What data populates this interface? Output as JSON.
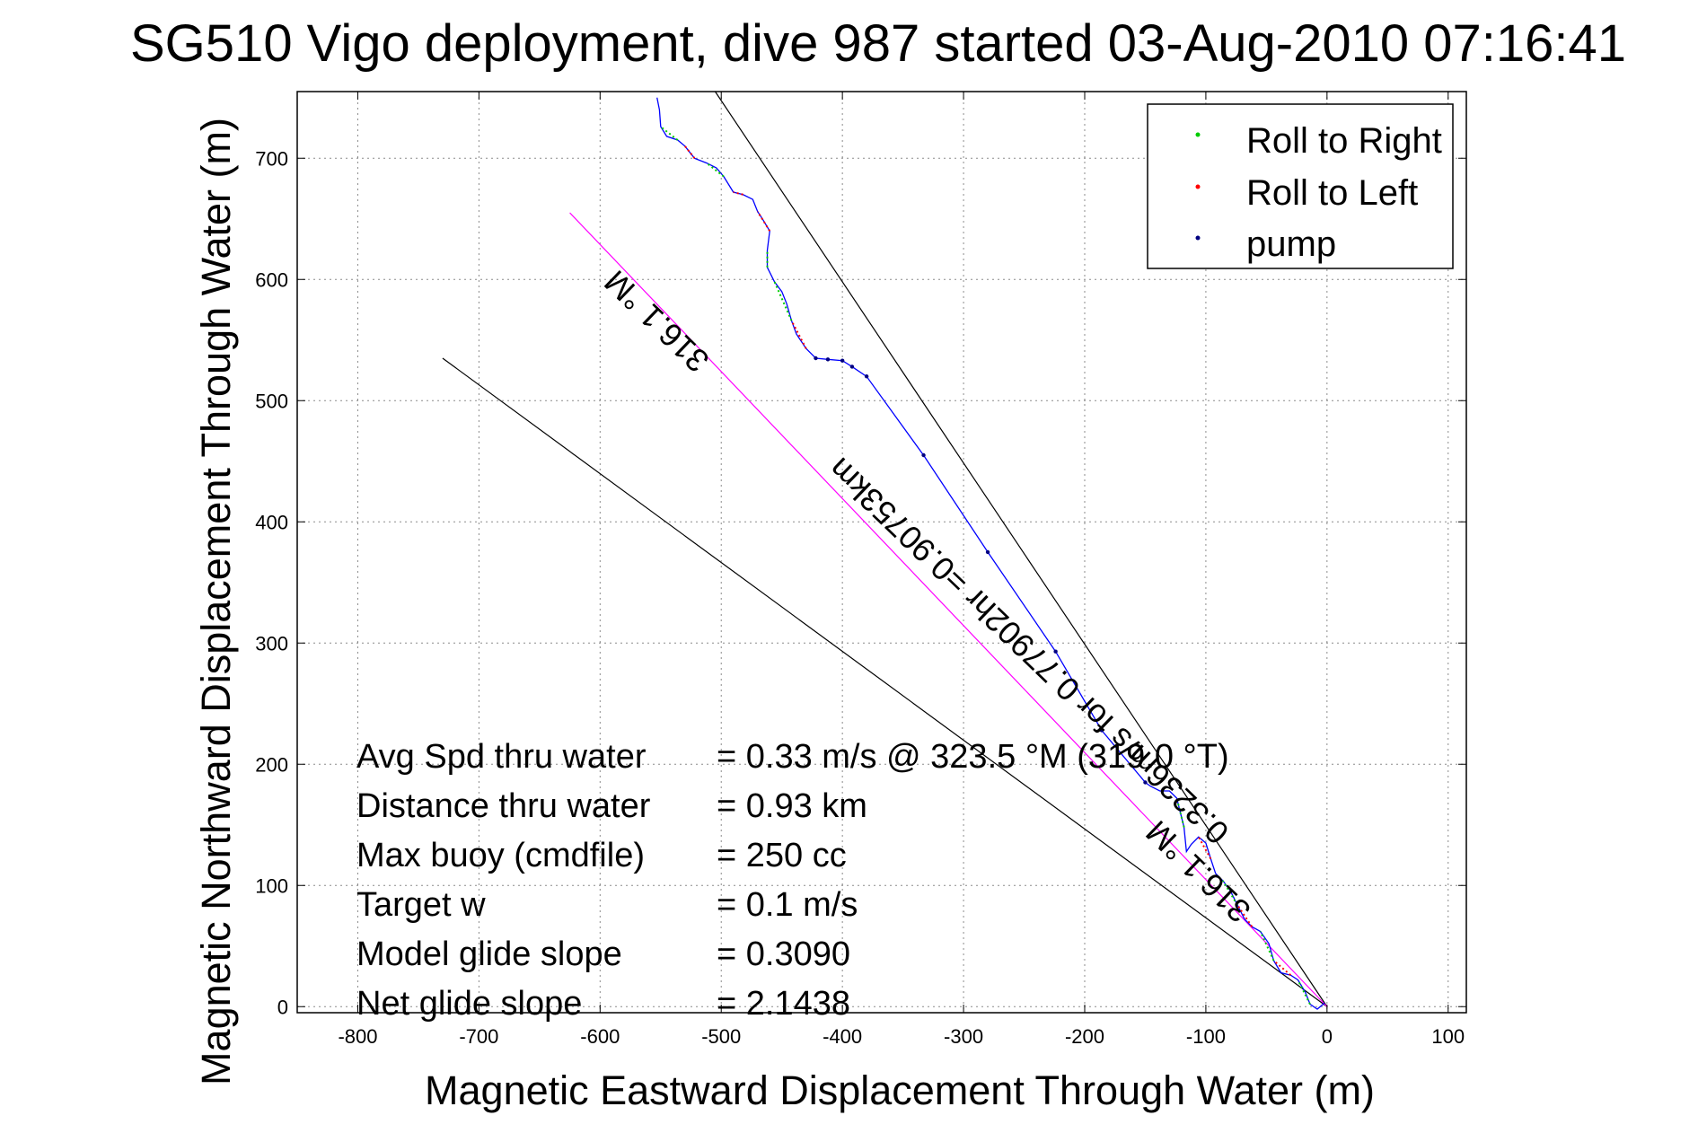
{
  "chart_data": {
    "type": "line",
    "title": "SG510 Vigo deployment, dive 987 started 03-Aug-2010 07:16:41",
    "xlabel": "Magnetic Eastward Displacement Through Water (m)",
    "ylabel": "Magnetic Northward Displacement Through Water (m)",
    "xlim": [
      -850,
      115
    ],
    "ylim": [
      -5,
      755
    ],
    "xticks": [
      -800,
      -700,
      -600,
      -500,
      -400,
      -300,
      -200,
      -100,
      0,
      100
    ],
    "yticks": [
      0,
      100,
      200,
      300,
      400,
      500,
      600,
      700
    ],
    "grid": true,
    "legend_position": "top-right",
    "legend": [
      {
        "label": "Roll to Right",
        "color": "#00cc00"
      },
      {
        "label": "Roll to Left",
        "color": "#ff0000"
      },
      {
        "label": "pump",
        "color": "#000080"
      }
    ],
    "track": {
      "color": "#0000ff",
      "points": [
        [
          -2,
          3
        ],
        [
          -8,
          -2
        ],
        [
          -14,
          2
        ],
        [
          -18,
          12
        ],
        [
          -24,
          22
        ],
        [
          -30,
          26
        ],
        [
          -38,
          28
        ],
        [
          -44,
          38
        ],
        [
          -48,
          52
        ],
        [
          -55,
          62
        ],
        [
          -62,
          66
        ],
        [
          -68,
          72
        ],
        [
          -74,
          84
        ],
        [
          -80,
          96
        ],
        [
          -86,
          104
        ],
        [
          -92,
          110
        ],
        [
          -96,
          122
        ],
        [
          -100,
          135
        ],
        [
          -106,
          140
        ],
        [
          -112,
          134
        ],
        [
          -116,
          128
        ],
        [
          -118,
          148
        ],
        [
          -124,
          172
        ],
        [
          -130,
          178
        ],
        [
          -138,
          178
        ],
        [
          -146,
          182
        ],
        [
          -150,
          185
        ],
        [
          -186,
          228
        ],
        [
          -224,
          293
        ],
        [
          -280,
          375
        ],
        [
          -333,
          455
        ],
        [
          -380,
          520
        ],
        [
          -392,
          528
        ],
        [
          -400,
          533
        ],
        [
          -412,
          534
        ],
        [
          -422,
          535
        ],
        [
          -430,
          543
        ],
        [
          -438,
          555
        ],
        [
          -442,
          566
        ],
        [
          -446,
          580
        ],
        [
          -450,
          590
        ],
        [
          -456,
          598
        ],
        [
          -462,
          610
        ],
        [
          -462,
          624
        ],
        [
          -460,
          640
        ],
        [
          -466,
          650
        ],
        [
          -470,
          656
        ],
        [
          -474,
          666
        ],
        [
          -482,
          670
        ],
        [
          -490,
          672
        ],
        [
          -498,
          685
        ],
        [
          -504,
          692
        ],
        [
          -512,
          696
        ],
        [
          -522,
          700
        ],
        [
          -530,
          710
        ],
        [
          -536,
          715
        ],
        [
          -545,
          718
        ],
        [
          -550,
          726
        ],
        [
          -551,
          740
        ],
        [
          -553,
          750
        ]
      ]
    },
    "roll_right_segments": [
      [
        [
          -14,
          2
        ],
        [
          -24,
          22
        ]
      ],
      [
        [
          -44,
          38
        ],
        [
          -55,
          62
        ]
      ],
      [
        [
          -74,
          84
        ],
        [
          -86,
          104
        ]
      ],
      [
        [
          -118,
          148
        ],
        [
          -124,
          172
        ]
      ],
      [
        [
          -442,
          566
        ],
        [
          -456,
          598
        ]
      ],
      [
        [
          -462,
          610
        ],
        [
          -462,
          624
        ]
      ],
      [
        [
          -498,
          685
        ],
        [
          -512,
          696
        ]
      ],
      [
        [
          -536,
          715
        ],
        [
          -550,
          726
        ]
      ]
    ],
    "roll_left_segments": [
      [
        [
          -30,
          26
        ],
        [
          -44,
          38
        ]
      ],
      [
        [
          -62,
          66
        ],
        [
          -74,
          84
        ]
      ],
      [
        [
          -96,
          122
        ],
        [
          -106,
          140
        ]
      ],
      [
        [
          -430,
          543
        ],
        [
          -442,
          566
        ]
      ],
      [
        [
          -460,
          640
        ],
        [
          -470,
          656
        ]
      ],
      [
        [
          -482,
          670
        ],
        [
          -490,
          672
        ]
      ],
      [
        [
          -522,
          700
        ],
        [
          -530,
          710
        ]
      ]
    ],
    "pump_points": [
      [
        -150,
        185
      ],
      [
        -186,
        228
      ],
      [
        -224,
        293
      ],
      [
        -280,
        375
      ],
      [
        -333,
        455
      ],
      [
        -380,
        520
      ],
      [
        -392,
        528
      ],
      [
        -400,
        533
      ],
      [
        -412,
        534
      ],
      [
        -422,
        535
      ]
    ],
    "heading_lines": [
      {
        "color": "#000000",
        "from": [
          0,
          0
        ],
        "to": [
          -505,
          755
        ]
      },
      {
        "color": "#000000",
        "from": [
          0,
          0
        ],
        "to": [
          -730,
          535
        ]
      },
      {
        "color": "#ff00ff",
        "from": [
          0,
          0
        ],
        "to": [
          -625,
          655
        ]
      }
    ],
    "annotations": [
      {
        "text": "316.1 °M",
        "x": -547,
        "y": 572,
        "angle": 43.9
      },
      {
        "text": "0.3236m/s for 0.77902hr =0.90753km",
        "x": -240,
        "y": 300,
        "angle": 43.9
      },
      {
        "text": "316.1 °M",
        "x": -100,
        "y": 118,
        "angle": 43.9
      }
    ]
  },
  "stats": {
    "labels": [
      "Avg Spd thru water",
      "Distance thru water",
      "Max buoy (cmdfile)",
      "Target w",
      "Model glide slope",
      "Net glide slope"
    ],
    "values": [
      "=  0.33 m/s @ 323.5 °M (319.0 °T)",
      "=  0.93 km",
      "= 250 cc",
      "= 0.1 m/s",
      "= 0.3090",
      "= 2.1438"
    ]
  }
}
